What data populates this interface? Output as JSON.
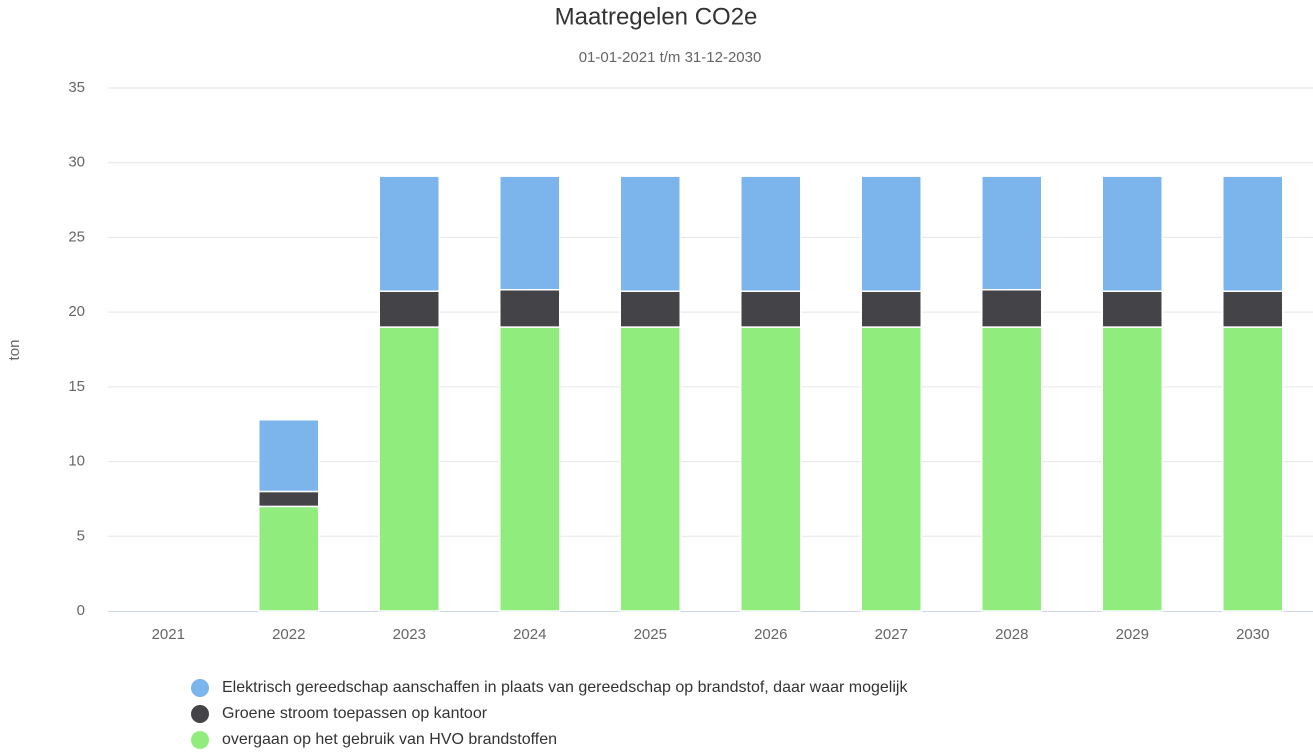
{
  "chart_data": {
    "type": "stacked_bar",
    "title": "Maatregelen CO2e",
    "subtitle": "01-01-2021 t/m 31-12-2030",
    "y_label": "ton",
    "categories": [
      "2021",
      "2022",
      "2023",
      "2024",
      "2025",
      "2026",
      "2027",
      "2028",
      "2029",
      "2030"
    ],
    "series": [
      {
        "name": "overgaan op het gebruik van HVO brandstoffen",
        "color": "#90ed7d",
        "values": [
          0,
          7,
          19,
          19,
          19,
          19,
          19,
          19,
          19,
          19
        ]
      },
      {
        "name": "Groene stroom toepassen op kantoor",
        "color": "#434348",
        "values": [
          0,
          1,
          2.4,
          2.5,
          2.4,
          2.4,
          2.4,
          2.5,
          2.4,
          2.4
        ]
      },
      {
        "name": "Elektrisch gereedschap aanschaffen in plaats van gereedschap op brandstof, daar waar mogelijk",
        "color": "#7cb5ec",
        "values": [
          0,
          4.8,
          7.7,
          7.6,
          7.7,
          7.7,
          7.7,
          7.6,
          7.7,
          7.7
        ]
      }
    ],
    "legend_order": [
      2,
      1,
      0
    ],
    "ylim": [
      0,
      35
    ],
    "yticks": [
      0,
      5,
      10,
      15,
      20,
      25,
      30,
      35
    ],
    "grid": true
  }
}
